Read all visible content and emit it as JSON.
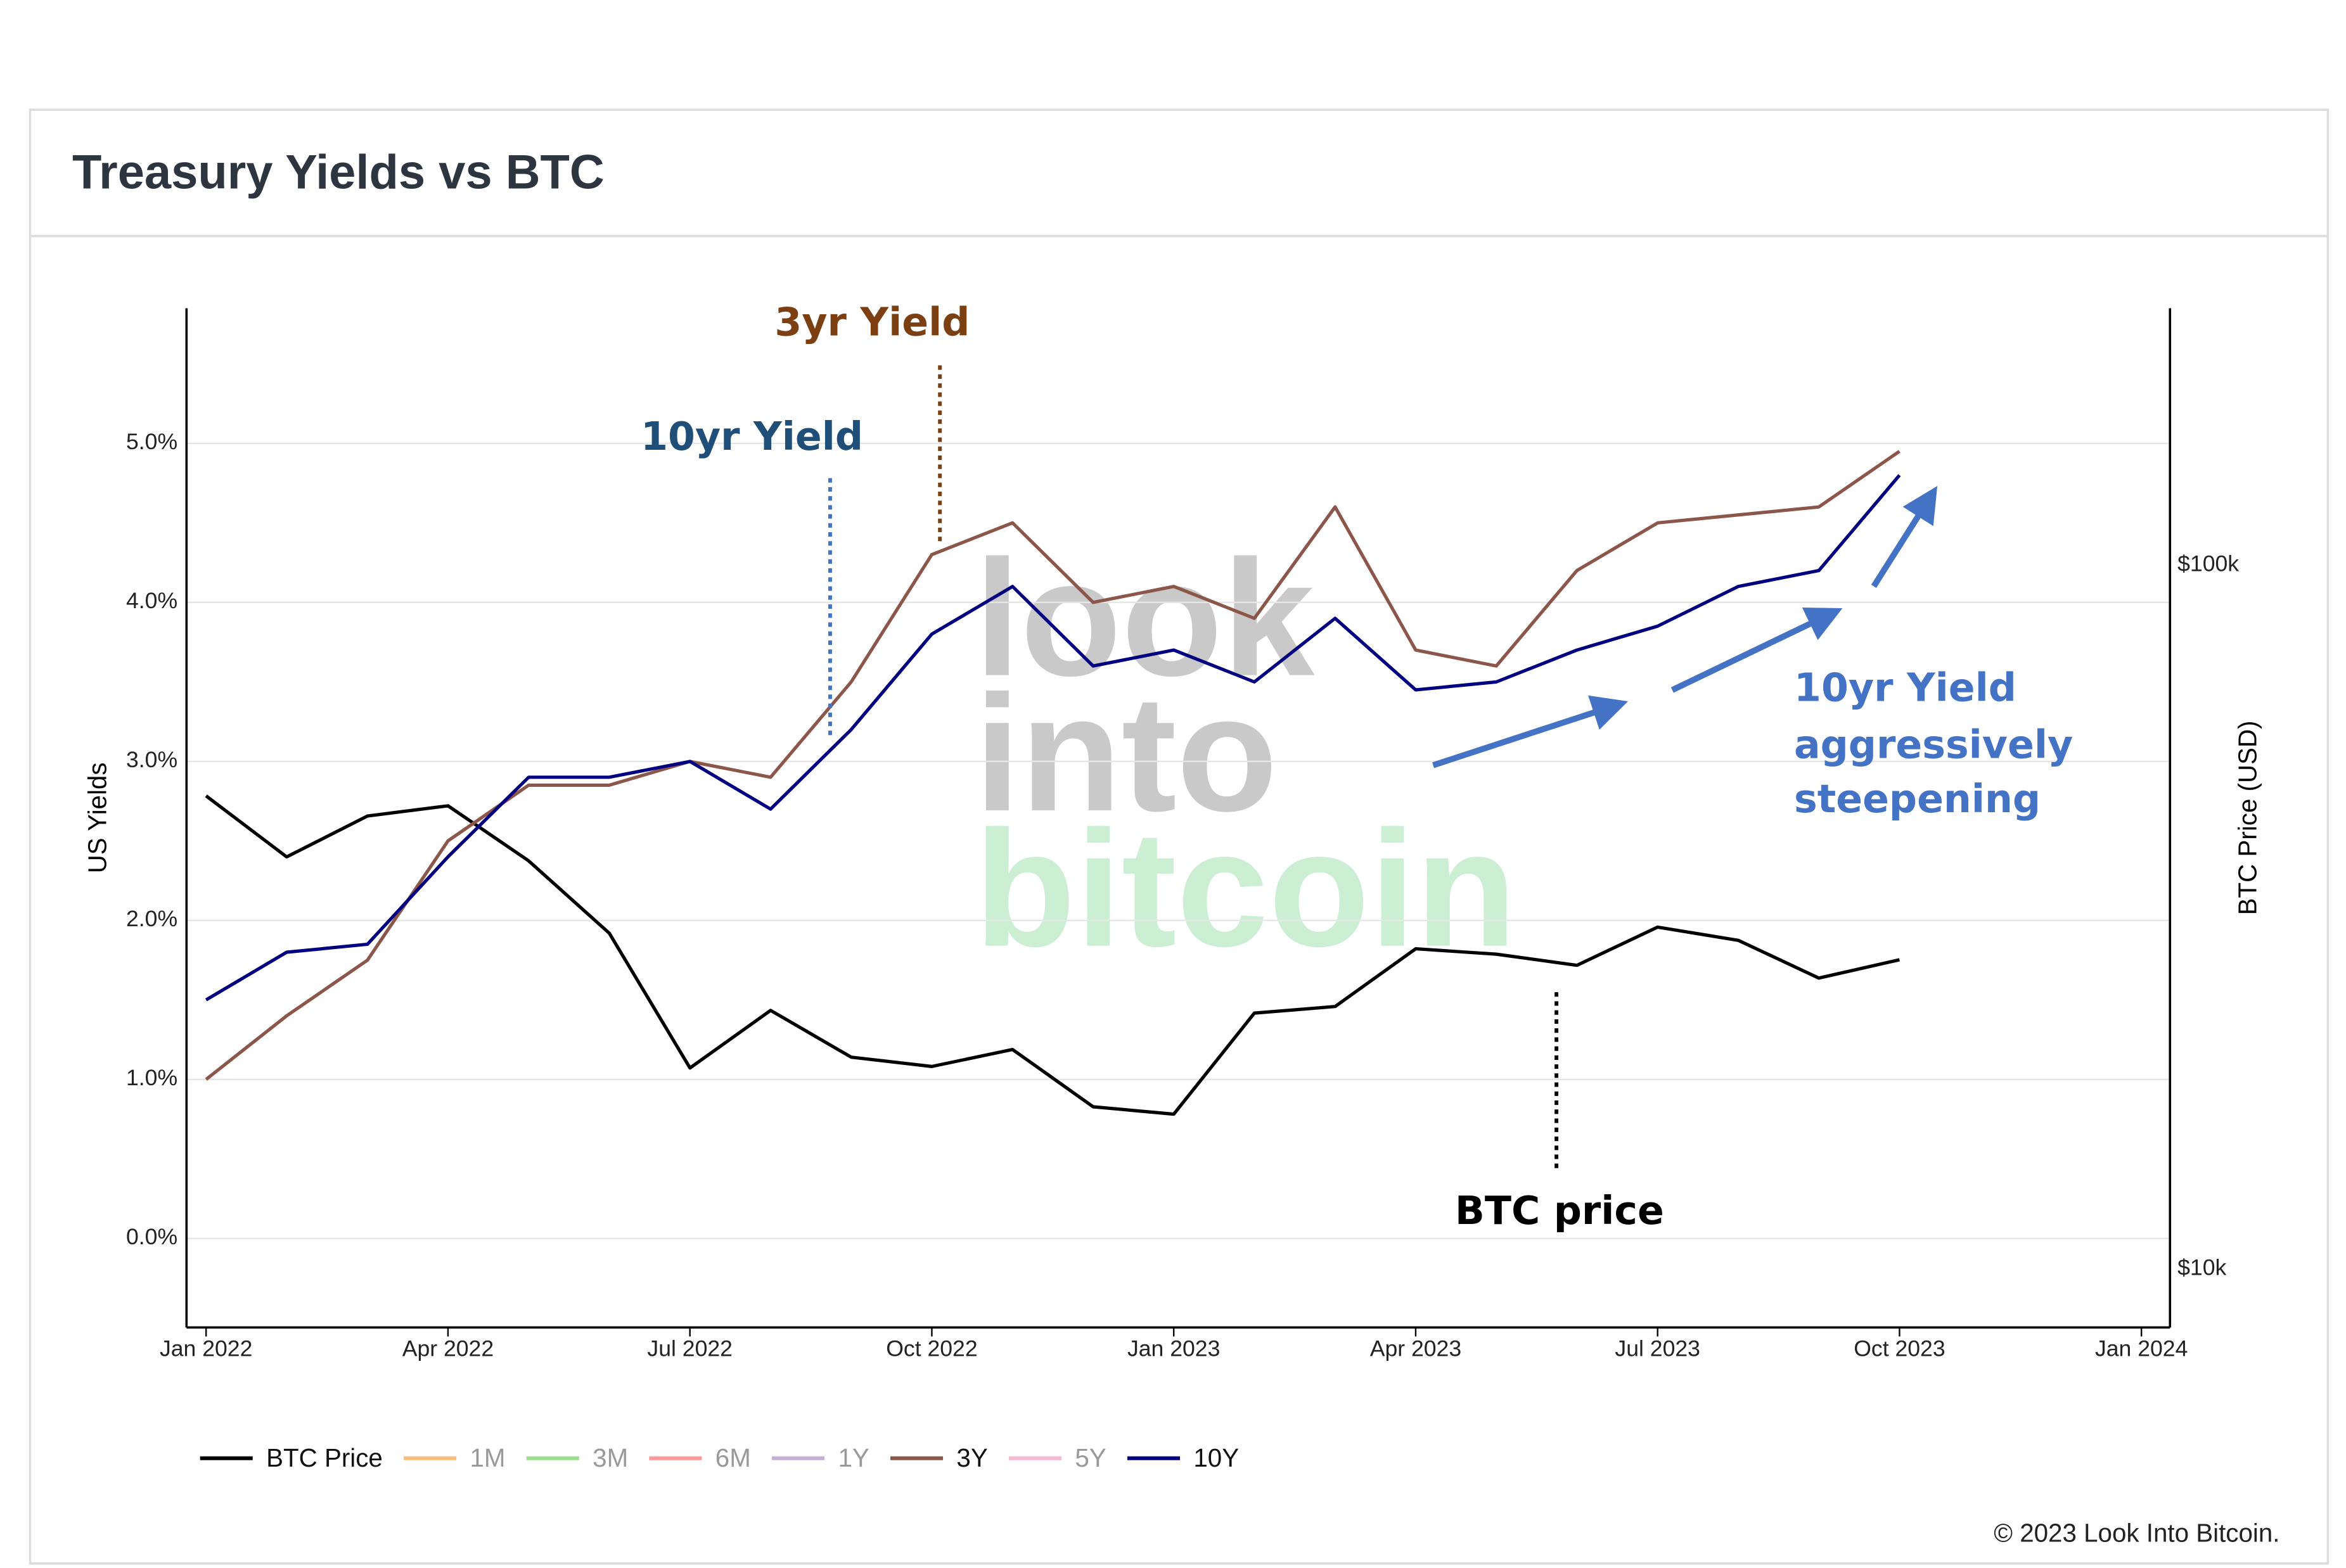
{
  "page_title": "Treasury Yields vs BTC",
  "footer": "© 2023 Look Into Bitcoin.",
  "watermark": [
    "look",
    "into",
    "bitcoin"
  ],
  "chart_data": {
    "type": "line",
    "x": [
      "2022-01",
      "2022-02",
      "2022-03",
      "2022-04",
      "2022-05",
      "2022-06",
      "2022-07",
      "2022-08",
      "2022-09",
      "2022-10",
      "2022-11",
      "2022-12",
      "2023-01",
      "2023-02",
      "2023-03",
      "2023-04",
      "2023-05",
      "2023-06",
      "2023-07",
      "2023-08",
      "2023-09",
      "2023-10"
    ],
    "xlim": [
      "2022-01",
      "2024-01"
    ],
    "xticks": [
      {
        "value": "2022-01",
        "label": "Jan 2022"
      },
      {
        "value": "2022-04",
        "label": "Apr 2022"
      },
      {
        "value": "2022-07",
        "label": "Jul 2022"
      },
      {
        "value": "2022-10",
        "label": "Oct 2022"
      },
      {
        "value": "2023-01",
        "label": "Jan 2023"
      },
      {
        "value": "2023-04",
        "label": "Apr 2023"
      },
      {
        "value": "2023-07",
        "label": "Jul 2023"
      },
      {
        "value": "2023-10",
        "label": "Oct 2023"
      },
      {
        "value": "2024-01",
        "label": "Jan 2024"
      }
    ],
    "ylabel": "US Yields",
    "ylim": [
      -0.56,
      5.85
    ],
    "yticks": [
      {
        "value": 0,
        "label": "0.0%"
      },
      {
        "value": 1,
        "label": "1.0%"
      },
      {
        "value": 2,
        "label": "2.0%"
      },
      {
        "value": 3,
        "label": "3.0%"
      },
      {
        "value": 4,
        "label": "4.0%"
      },
      {
        "value": 5,
        "label": "5.0%"
      }
    ],
    "y2label": "BTC Price (USD)",
    "y2lim": [
      8260,
      231700
    ],
    "y2log": true,
    "y2ticks": [
      {
        "value": 10000,
        "label": "$10k"
      },
      {
        "value": 100000,
        "label": "$100k"
      }
    ],
    "grid": true,
    "legend": "bottom-left",
    "series": [
      {
        "name": "BTC Price",
        "color": "#000000",
        "axis": "y2",
        "values": [
          47000,
          38500,
          44000,
          45500,
          38000,
          30000,
          19300,
          23300,
          20000,
          19400,
          20500,
          17000,
          16600,
          23100,
          23600,
          28500,
          28000,
          27000,
          30600,
          29300,
          25900,
          27500
        ]
      },
      {
        "name": "1M",
        "color": "#ffbb78",
        "visible": false
      },
      {
        "name": "3M",
        "color": "#98df8a",
        "visible": false
      },
      {
        "name": "6M",
        "color": "#ff9896",
        "visible": false
      },
      {
        "name": "1Y",
        "color": "#c5b0d5",
        "visible": false
      },
      {
        "name": "3Y",
        "color": "#8c564b",
        "values": [
          1.0,
          1.4,
          1.75,
          2.5,
          2.85,
          2.85,
          3.0,
          2.9,
          3.5,
          4.3,
          4.5,
          4.0,
          4.1,
          3.9,
          4.6,
          3.7,
          3.6,
          4.2,
          4.5,
          4.55,
          4.6,
          4.95
        ]
      },
      {
        "name": "5Y",
        "color": "#f7b6d2",
        "visible": false
      },
      {
        "name": "10Y",
        "color": "#000080",
        "values": [
          1.5,
          1.8,
          1.85,
          2.4,
          2.9,
          2.9,
          3.0,
          2.7,
          3.2,
          3.8,
          4.1,
          3.6,
          3.7,
          3.5,
          3.9,
          3.45,
          3.5,
          3.7,
          3.85,
          4.1,
          4.2,
          4.8
        ]
      }
    ],
    "annotations": [
      {
        "text": "3yr Yield",
        "color": "#7b3f12"
      },
      {
        "text": "10yr Yield",
        "color": "#1f4e79"
      },
      {
        "lines": [
          "10yr Yield",
          "aggressively",
          "steepening"
        ],
        "color": "#4472c4"
      },
      {
        "text": "BTC price",
        "color": "#000000"
      }
    ]
  }
}
